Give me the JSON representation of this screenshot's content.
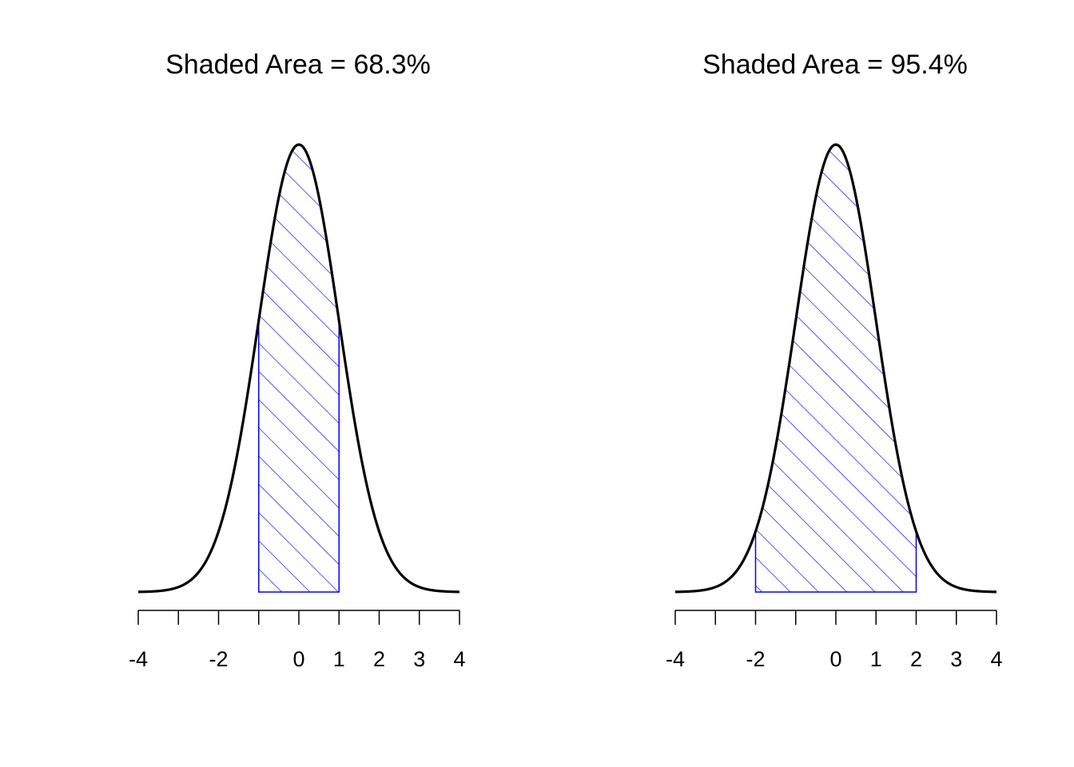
{
  "colors": {
    "curve": "#000000",
    "shade": "#0000ff",
    "background": "#ffffff"
  },
  "chart_data": [
    {
      "type": "area",
      "title": "Shaded Area = 68.3%",
      "distribution": "standard normal density",
      "xlim": [
        -4,
        4
      ],
      "ticks": [
        -4,
        -3,
        -2,
        -1,
        0,
        1,
        2,
        3,
        4
      ],
      "tick_labels": [
        "-4",
        "",
        "-2",
        "",
        "0",
        "1",
        "2",
        "3",
        "4"
      ],
      "shaded_interval": [
        -1,
        1
      ],
      "shade_style": "diagonal hatch",
      "xlabel": "",
      "ylabel": ""
    },
    {
      "type": "area",
      "title": "Shaded Area = 95.4%",
      "distribution": "standard normal density",
      "xlim": [
        -4,
        4
      ],
      "ticks": [
        -4,
        -3,
        -2,
        -1,
        0,
        1,
        2,
        3,
        4
      ],
      "tick_labels": [
        "-4",
        "",
        "-2",
        "",
        "0",
        "1",
        "2",
        "3",
        "4"
      ],
      "shaded_interval": [
        -2,
        2
      ],
      "shade_style": "diagonal hatch",
      "xlabel": "",
      "ylabel": ""
    }
  ]
}
